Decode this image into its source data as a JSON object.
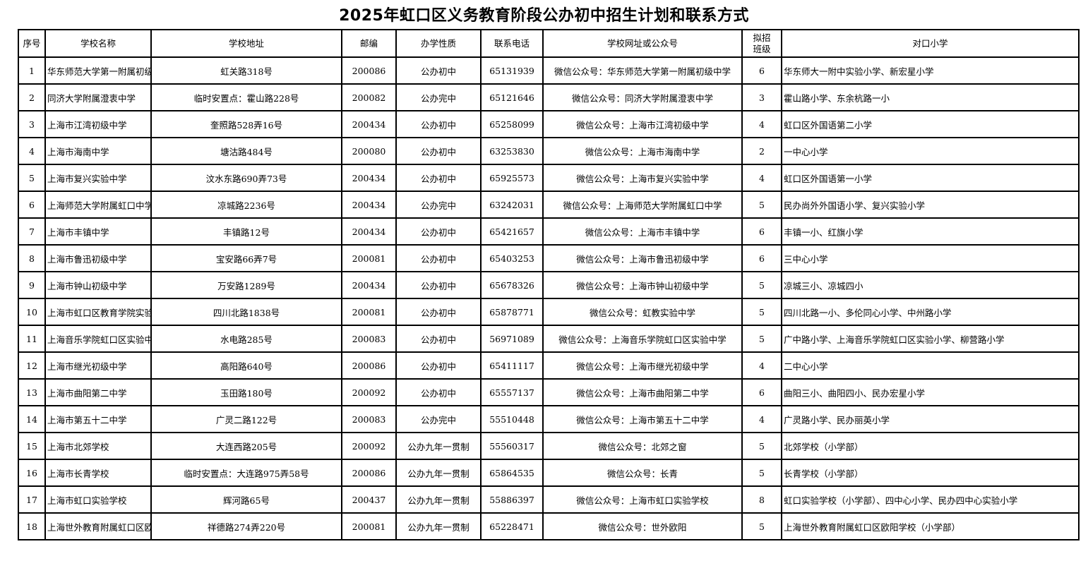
{
  "title": "2025年虹口区义务教育阶段公办初中招生计划和联系方式",
  "headers": [
    "序号",
    "学校名称",
    "学校地址",
    "邮编",
    "办学性质",
    "联系电话",
    "学校网址或公众号",
    "拟招\n班级",
    "对口小学"
  ],
  "rows": [
    [
      "1",
      "华东师范大学第一附属初级中学",
      "虹关路318号",
      "200086",
      "公办初中",
      "65131939",
      "微信公众号：华东师范大学第一附属初级中学",
      "6",
      "华东师大一附中实验小学、新宏星小学"
    ],
    [
      "2",
      "同济大学附属澄衷中学",
      "临时安置点：霍山路228号",
      "200082",
      "公办完中",
      "65121646",
      "微信公众号：同济大学附属澄衷中学",
      "3",
      "霍山路小学、东余杭路一小"
    ],
    [
      "3",
      "上海市江湾初级中学",
      "奎照路528弄16号",
      "200434",
      "公办初中",
      "65258099",
      "微信公众号：上海市江湾初级中学",
      "4",
      "虹口区外国语第二小学"
    ],
    [
      "4",
      "上海市海南中学",
      "塘沽路484号",
      "200080",
      "公办初中",
      "63253830",
      "微信公众号：上海市海南中学",
      "2",
      "一中心小学"
    ],
    [
      "5",
      "上海市复兴实验中学",
      "汶水东路690弄73号",
      "200434",
      "公办初中",
      "65925573",
      "微信公众号：上海市复兴实验中学",
      "4",
      "虹口区外国语第一小学"
    ],
    [
      "6",
      "上海师范大学附属虹口中学",
      "凉城路2236号",
      "200434",
      "公办完中",
      "63242031",
      "微信公众号：上海师范大学附属虹口中学",
      "5",
      "民办尚外外国语小学、复兴实验小学"
    ],
    [
      "7",
      "上海市丰镇中学",
      "丰镇路12号",
      "200434",
      "公办初中",
      "65421657",
      "微信公众号：上海市丰镇中学",
      "6",
      "丰镇一小、红旗小学"
    ],
    [
      "8",
      "上海市鲁迅初级中学",
      "宝安路66弄7号",
      "200081",
      "公办初中",
      "65403253",
      "微信公众号：上海市鲁迅初级中学",
      "6",
      "三中心小学"
    ],
    [
      "9",
      "上海市钟山初级中学",
      "万安路1289号",
      "200434",
      "公办初中",
      "65678326",
      "微信公众号：上海市钟山初级中学",
      "5",
      "凉城三小、凉城四小"
    ],
    [
      "10",
      "上海市虹口区教育学院实验中学",
      "四川北路1838号",
      "200081",
      "公办初中",
      "65878771",
      "微信公众号：虹教实验中学",
      "5",
      "四川北路一小、多伦同心小学、中州路小学"
    ],
    [
      "11",
      "上海音乐学院虹口区实验中学",
      "水电路285号",
      "200083",
      "公办初中",
      "56971089",
      "微信公众号：上海音乐学院虹口区实验中学",
      "5",
      "广中路小学、上海音乐学院虹口区实验小学、柳营路小学"
    ],
    [
      "12",
      "上海市继光初级中学",
      "高阳路640号",
      "200086",
      "公办初中",
      "65411117",
      "微信公众号：上海市继光初级中学",
      "4",
      "二中心小学"
    ],
    [
      "13",
      "上海市曲阳第二中学",
      "玉田路180号",
      "200092",
      "公办初中",
      "65557137",
      "微信公众号：上海市曲阳第二中学",
      "6",
      "曲阳三小、曲阳四小、民办宏星小学"
    ],
    [
      "14",
      "上海市第五十二中学",
      "广灵二路122号",
      "200083",
      "公办完中",
      "55510448",
      "微信公众号：上海市第五十二中学",
      "4",
      "广灵路小学、民办丽英小学"
    ],
    [
      "15",
      "上海市北郊学校",
      "大连西路205号",
      "200092",
      "公办九年一贯制",
      "55560317",
      "微信公众号：北郊之窗",
      "5",
      "北郊学校（小学部）"
    ],
    [
      "16",
      "上海市长青学校",
      "临时安置点：大连路975弄58号",
      "200086",
      "公办九年一贯制",
      "65864535",
      "微信公众号：长青",
      "5",
      "长青学校（小学部）"
    ],
    [
      "17",
      "上海市虹口实验学校",
      "辉河路65号",
      "200437",
      "公办九年一贯制",
      "55886397",
      "微信公众号：上海市虹口实验学校",
      "8",
      "虹口实验学校（小学部）、四中心小学、民办四中心实验小学"
    ],
    [
      "18",
      "上海世外教育附属虹口区欧阳学校",
      "祥德路274弄220号",
      "200081",
      "公办九年一贯制",
      "65228471",
      "微信公众号：世外欧阳",
      "5",
      "上海世外教育附属虹口区欧阳学校（小学部）"
    ]
  ]
}
